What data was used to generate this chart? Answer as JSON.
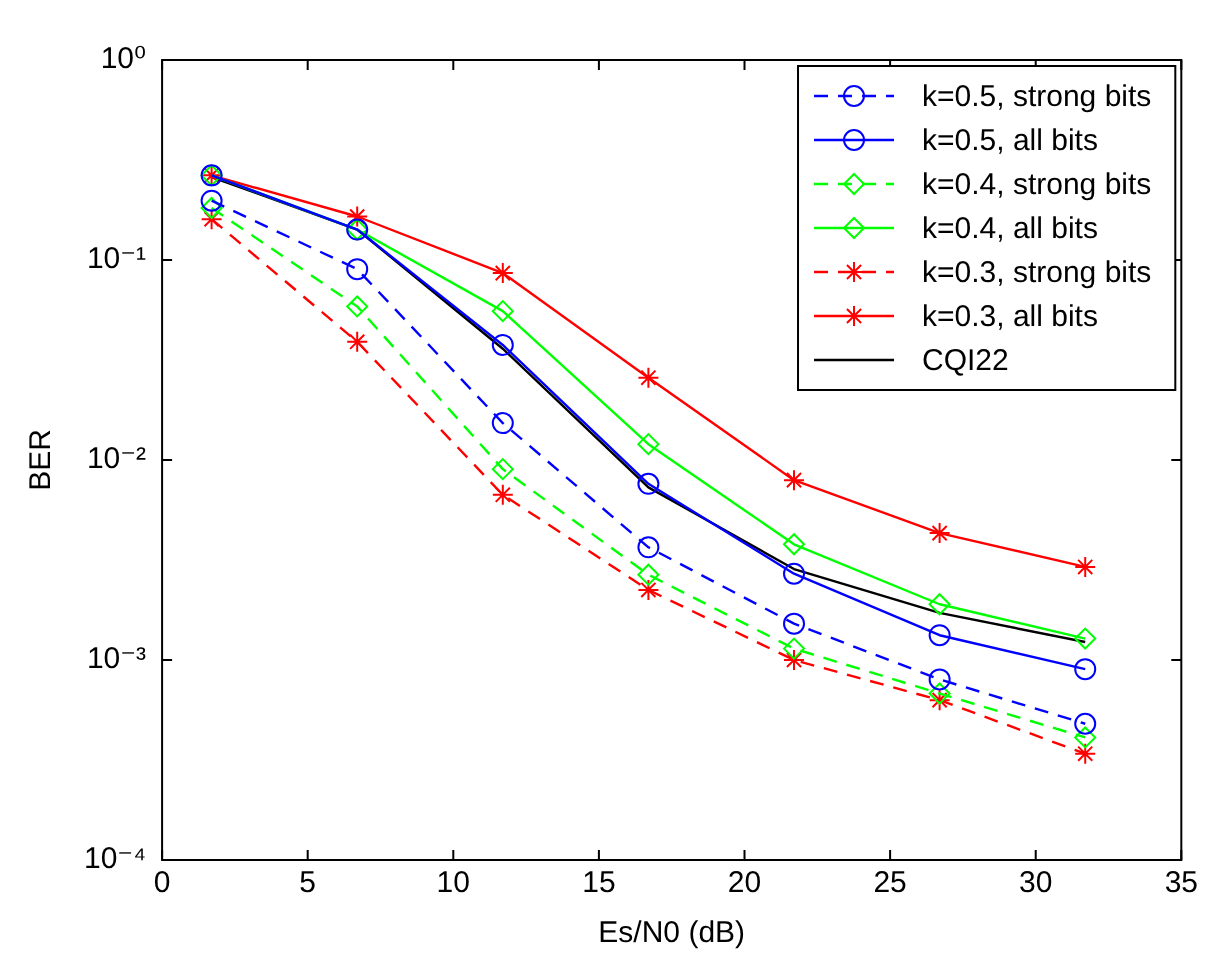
{
  "chart_data": {
    "type": "line",
    "xlabel": "Es/N0 (dB)",
    "ylabel": "BER",
    "log": "y",
    "x": [
      1.7,
      6.7,
      11.7,
      16.7,
      21.7,
      26.7,
      31.7
    ],
    "xlim": [
      0,
      35
    ],
    "xticks": [
      0,
      5,
      10,
      15,
      20,
      25,
      30,
      35
    ],
    "ylim": [
      0.0001,
      1
    ],
    "yticks": [
      {
        "value": 0.0001,
        "label": "10⁻⁴"
      },
      {
        "value": 0.001,
        "label": "10⁻³"
      },
      {
        "value": 0.01,
        "label": "10⁻²"
      },
      {
        "value": 0.1,
        "label": "10⁻¹"
      },
      {
        "value": 1,
        "label": "10⁰"
      }
    ],
    "grid": false,
    "legend": "top right",
    "series": [
      {
        "name": "k=0.5, strong bits",
        "color": "#0000ff",
        "marker": "circle",
        "line_style": "dashed",
        "values": [
          0.198,
          0.09,
          0.0153,
          0.00366,
          0.00152,
          0.0008,
          0.00048
        ]
      },
      {
        "name": "k=0.5, all bits",
        "color": "#0000ff",
        "marker": "circle",
        "line_style": "solid",
        "values": [
          0.265,
          0.142,
          0.0376,
          0.0076,
          0.0027,
          0.00133,
          0.0009
        ]
      },
      {
        "name": "k=0.4, strong bits",
        "color": "#00ff00",
        "marker": "diamond",
        "line_style": "dashed",
        "values": [
          0.182,
          0.0586,
          0.009,
          0.00267,
          0.00114,
          0.00068,
          0.00041
        ]
      },
      {
        "name": "k=0.4, all bits",
        "color": "#00ff00",
        "marker": "diamond",
        "line_style": "solid",
        "values": [
          0.265,
          0.142,
          0.0555,
          0.012,
          0.00379,
          0.0019,
          0.00128
        ]
      },
      {
        "name": "k=0.3, strong bits",
        "color": "#ff0000",
        "marker": "cross",
        "line_style": "dashed",
        "values": [
          0.16,
          0.039,
          0.0067,
          0.00224,
          0.001,
          0.00063,
          0.00034
        ]
      },
      {
        "name": "k=0.3, all bits",
        "color": "#ff0000",
        "marker": "cross",
        "line_style": "solid",
        "values": [
          0.265,
          0.165,
          0.086,
          0.0258,
          0.00793,
          0.00431,
          0.00292
        ]
      },
      {
        "name": "CQI22",
        "color": "#000000",
        "marker": "none",
        "line_style": "solid",
        "values": [
          0.26,
          0.142,
          0.036,
          0.0073,
          0.00285,
          0.00172,
          0.00123
        ]
      }
    ]
  }
}
